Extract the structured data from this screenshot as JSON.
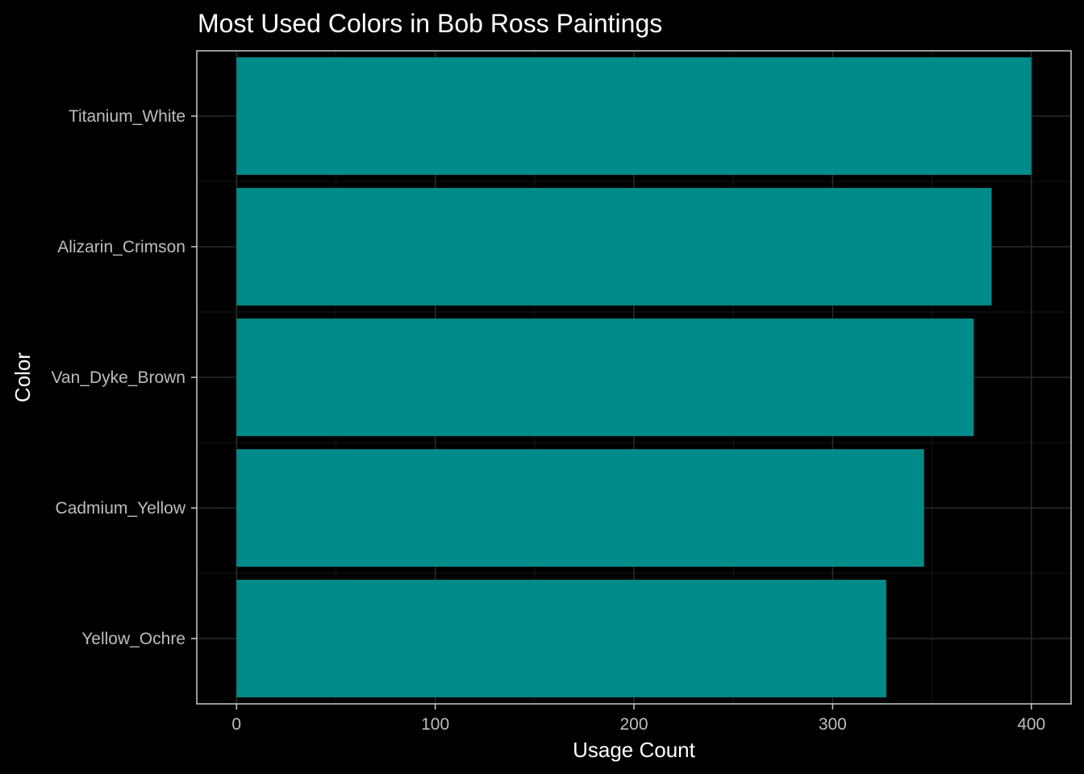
{
  "chart_data": {
    "type": "bar",
    "orientation": "horizontal",
    "title": "Most Used Colors in Bob Ross Paintings",
    "xlabel": "Usage Count",
    "ylabel": "Color",
    "categories": [
      "Titanium_White",
      "Alizarin_Crimson",
      "Van_Dyke_Brown",
      "Cadmium_Yellow",
      "Yellow_Ochre"
    ],
    "values": [
      400,
      380,
      371,
      346,
      327
    ],
    "xlim": [
      -20,
      420
    ],
    "xticks": [
      "0",
      "100",
      "200",
      "300",
      "400"
    ],
    "grid": true,
    "bar_color": "#008b8b",
    "background_color": "#000000"
  }
}
